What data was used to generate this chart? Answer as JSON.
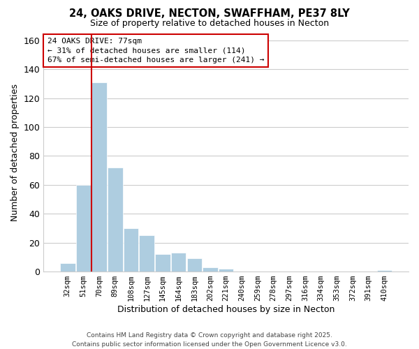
{
  "title": "24, OAKS DRIVE, NECTON, SWAFFHAM, PE37 8LY",
  "subtitle": "Size of property relative to detached houses in Necton",
  "xlabel": "Distribution of detached houses by size in Necton",
  "ylabel": "Number of detached properties",
  "bar_labels": [
    "32sqm",
    "51sqm",
    "70sqm",
    "89sqm",
    "108sqm",
    "127sqm",
    "145sqm",
    "164sqm",
    "183sqm",
    "202sqm",
    "221sqm",
    "240sqm",
    "259sqm",
    "278sqm",
    "297sqm",
    "316sqm",
    "334sqm",
    "353sqm",
    "372sqm",
    "391sqm",
    "410sqm"
  ],
  "bar_values": [
    6,
    60,
    131,
    72,
    30,
    25,
    12,
    13,
    9,
    3,
    2,
    0,
    0,
    0,
    0,
    0,
    0,
    0,
    0,
    0,
    1
  ],
  "bar_color": "#aecde0",
  "bar_edge_color": "#aecde0",
  "vline_color": "#cc0000",
  "ylim": [
    0,
    165
  ],
  "yticks": [
    0,
    20,
    40,
    60,
    80,
    100,
    120,
    140,
    160
  ],
  "annotation_title": "24 OAKS DRIVE: 77sqm",
  "annotation_line1": "← 31% of detached houses are smaller (114)",
  "annotation_line2": "67% of semi-detached houses are larger (241) →",
  "annotation_box_color": "#ffffff",
  "annotation_box_edge": "#cc0000",
  "footer1": "Contains HM Land Registry data © Crown copyright and database right 2025.",
  "footer2": "Contains public sector information licensed under the Open Government Licence v3.0.",
  "background_color": "#ffffff",
  "grid_color": "#cccccc"
}
